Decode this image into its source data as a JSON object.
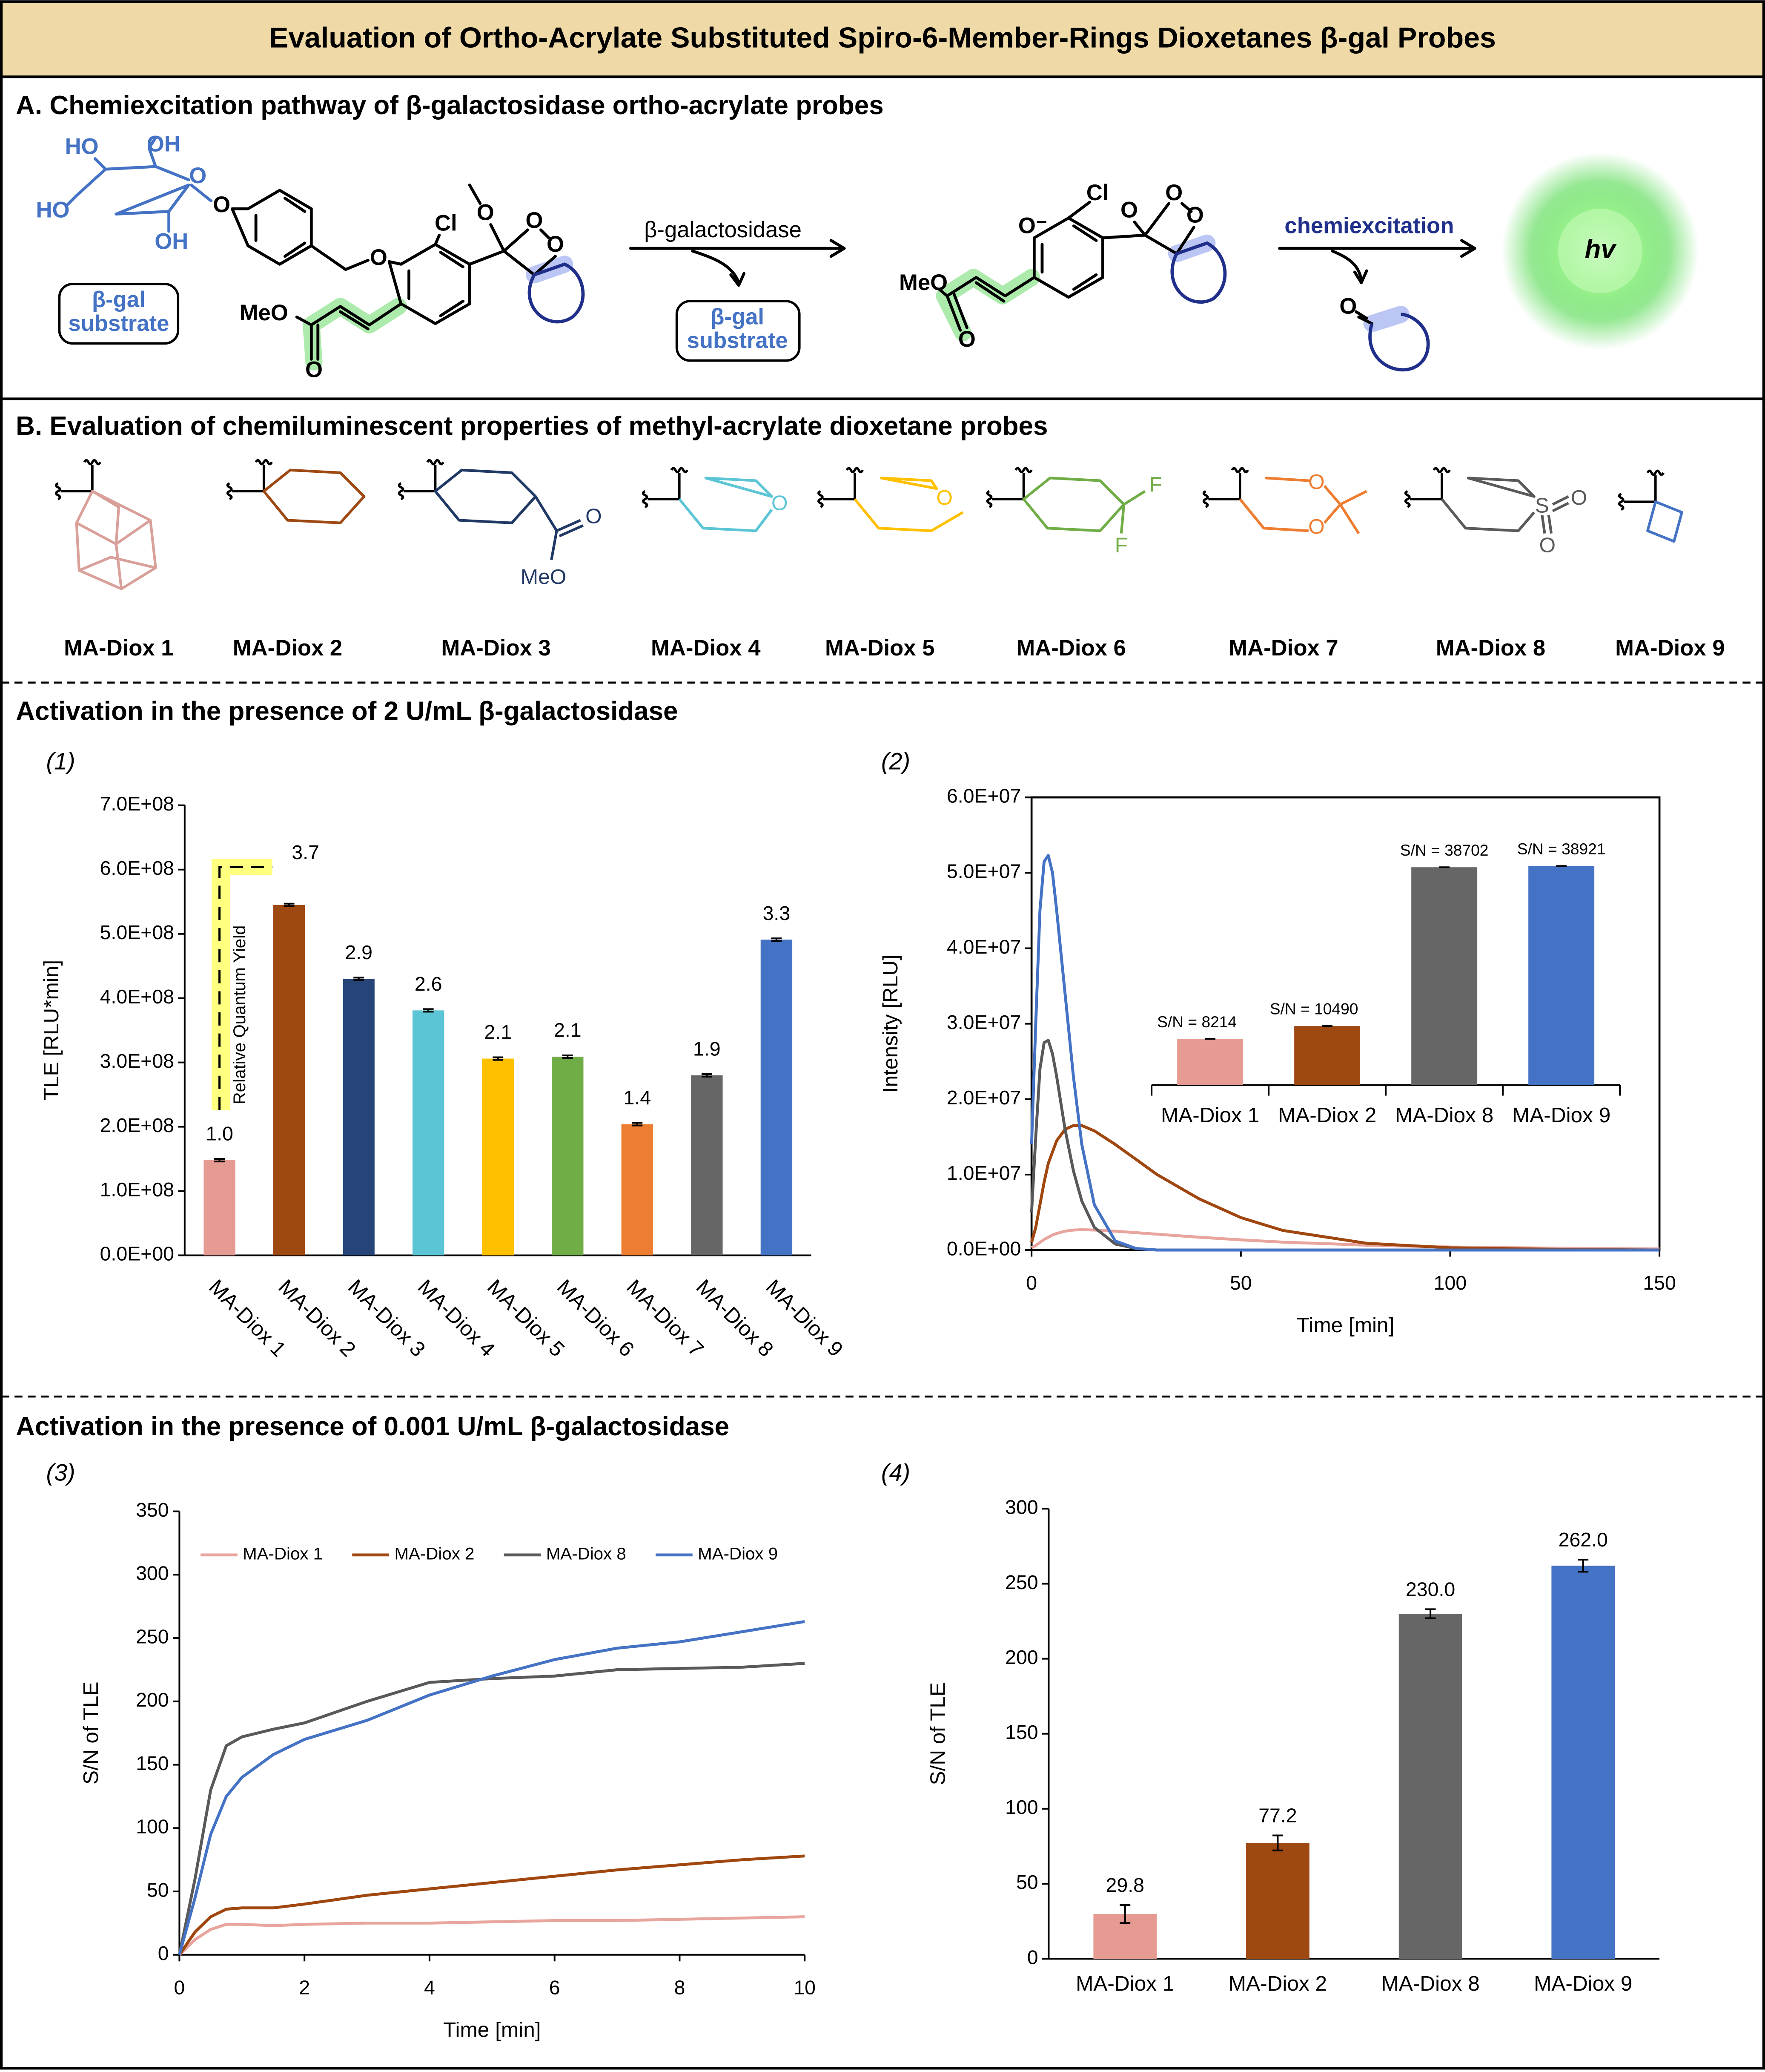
{
  "title": "Evaluation of Ortho-Acrylate Substituted Spiro-6-Member-Rings Dioxetanes β-gal Probes",
  "panel_a": {
    "title": "A. Chemiexcitation pathway of β-galactosidase ortho-acrylate probes",
    "atoms": [
      "HO",
      "OH",
      "O",
      "HO",
      "OH",
      "O",
      "O",
      "Cl",
      "O",
      "O",
      "O",
      "MeO",
      "O",
      "O⁻",
      "Cl",
      "O",
      "O",
      "O",
      "MeO",
      "O",
      "O"
    ],
    "substrate": [
      "β-gal",
      "substrate"
    ],
    "enzyme": "β-galactosidase",
    "step": "chemiexcitation",
    "emission": "hv"
  },
  "panel_b": {
    "title": "B. Evaluation of chemiluminescent properties of methyl-acrylate dioxetane probes",
    "probes": [
      {
        "name": "MA-Diox 1"
      },
      {
        "name": "MA-Diox 2"
      },
      {
        "name": "MA-Diox 3",
        "atoms": [
          "O",
          "MeO"
        ]
      },
      {
        "name": "MA-Diox 4",
        "atoms": [
          "O"
        ]
      },
      {
        "name": "MA-Diox 5",
        "atoms": [
          "O"
        ]
      },
      {
        "name": "MA-Diox 6",
        "atoms": [
          "F",
          "F"
        ]
      },
      {
        "name": "MA-Diox 7",
        "atoms": [
          "O",
          "O"
        ]
      },
      {
        "name": "MA-Diox 8",
        "atoms": [
          "S",
          "O",
          "O"
        ]
      },
      {
        "name": "MA-Diox 9"
      }
    ]
  },
  "heading_high": "Activation in the presence of 2 U/mL β-galactosidase",
  "heading_low": "Activation in the presence of 0.001 U/mL β-galactosidase",
  "chart_data": [
    {
      "type": "bar",
      "panel_label": "(1)",
      "y_label": "TLE [RLU*min]",
      "categories": [
        "MA-Diox 1",
        "MA-Diox 2",
        "MA-Diox 3",
        "MA-Diox 4",
        "MA-Diox 5",
        "MA-Diox 6",
        "MA-Diox 7",
        "MA-Diox 8",
        "MA-Diox 9"
      ],
      "values": [
        148000000,
        545000000,
        430000000,
        381000000,
        306000000,
        309000000,
        204000000,
        280000000,
        491000000
      ],
      "errors": [
        2000000,
        2000000,
        2000000,
        2000000,
        2000000,
        2000000,
        2000000,
        2000000,
        2000000
      ],
      "colors": [
        "#e59a92",
        "#9e4812",
        "#264478",
        "#5bc5d5",
        "#ffc000",
        "#70ad47",
        "#ed7d31",
        "#666666",
        "#4472c4"
      ],
      "annotations": [
        "1.0",
        "3.7",
        "2.9",
        "2.6",
        "2.1",
        "2.1",
        "1.4",
        "1.9",
        "3.3"
      ],
      "annotation_title": "Relative Quantum Yield",
      "ylim": [
        0,
        700000000
      ],
      "yticks": [
        {
          "value": 0,
          "label": "0.0E+00"
        },
        {
          "value": 100000000,
          "label": "1.0E+08"
        },
        {
          "value": 200000000,
          "label": "2.0E+08"
        },
        {
          "value": 300000000,
          "label": "3.0E+08"
        },
        {
          "value": 400000000,
          "label": "4.0E+08"
        },
        {
          "value": 500000000,
          "label": "5.0E+08"
        },
        {
          "value": 600000000,
          "label": "6.0E+08"
        },
        {
          "value": 700000000,
          "label": "7.0E+08"
        }
      ]
    },
    {
      "type": "line",
      "panel_label": "(2)",
      "x_label": "Time [min]",
      "y_label": "Intensity [RLU]",
      "x": [
        0,
        1,
        2,
        3,
        4,
        5,
        6,
        8,
        10,
        12,
        15,
        20,
        25,
        30,
        40,
        50,
        60,
        80,
        100,
        125,
        150
      ],
      "xlim": [
        0,
        150
      ],
      "xticks": [
        0,
        50,
        100,
        150
      ],
      "ylim": [
        0,
        60000000
      ],
      "yticks": [
        {
          "value": 0,
          "label": "0.0E+00"
        },
        {
          "value": 10000000,
          "label": "1.0E+07"
        },
        {
          "value": 20000000,
          "label": "2.0E+07"
        },
        {
          "value": 30000000,
          "label": "3.0E+07"
        },
        {
          "value": 40000000,
          "label": "4.0E+07"
        },
        {
          "value": 50000000,
          "label": "5.0E+07"
        },
        {
          "value": 60000000,
          "label": "6.0E+07"
        }
      ],
      "series": [
        {
          "name": "MA-Diox 1",
          "color": "#e8a59e",
          "values": [
            300000,
            600000,
            1000000,
            1400000,
            1700000,
            2000000,
            2200000,
            2500000,
            2650000,
            2700000,
            2650000,
            2500000,
            2300000,
            2100000,
            1700000,
            1350000,
            1050000,
            650000,
            400000,
            250000,
            150000
          ]
        },
        {
          "name": "MA-Diox 2",
          "color": "#a0460f",
          "values": [
            1000000,
            3000000,
            6000000,
            9000000,
            11500000,
            13000000,
            14500000,
            16000000,
            16500000,
            16500000,
            15800000,
            14000000,
            12000000,
            10000000,
            6800000,
            4300000,
            2600000,
            900000,
            300000,
            100000,
            0
          ]
        },
        {
          "name": "MA-Diox 8",
          "color": "#595959",
          "values": [
            5000000,
            15000000,
            24000000,
            27500000,
            27800000,
            26000000,
            23000000,
            16000000,
            10500000,
            6500000,
            3000000,
            800000,
            200000,
            0,
            0,
            0,
            0,
            0,
            0,
            0,
            0
          ]
        },
        {
          "name": "MA-Diox 9",
          "color": "#4472c4",
          "values": [
            14000000,
            30000000,
            45000000,
            51500000,
            52300000,
            50000000,
            45000000,
            34000000,
            23000000,
            14000000,
            6000000,
            1200000,
            200000,
            0,
            0,
            0,
            0,
            0,
            0,
            0,
            0
          ]
        }
      ],
      "inset": {
        "type": "bar",
        "categories": [
          "MA-Diox 1",
          "MA-Diox 2",
          "MA-Diox 8",
          "MA-Diox 9"
        ],
        "values": [
          8214,
          10490,
          38702,
          38921
        ],
        "value_labels": [
          "S/N = 8214",
          "S/N = 10490",
          "S/N = 38702",
          "S/N = 38921"
        ],
        "colors": [
          "#e59a92",
          "#9e4812",
          "#666666",
          "#4472c4"
        ]
      }
    },
    {
      "type": "line",
      "panel_label": "(3)",
      "x_label": "Time [min]",
      "y_label": "S/N of TLE",
      "legend": "top",
      "x": [
        0,
        0.25,
        0.5,
        0.75,
        1,
        1.5,
        2,
        3,
        4,
        5,
        6,
        7,
        8,
        9,
        10
      ],
      "xlim": [
        0,
        10
      ],
      "xticks": [
        0,
        2,
        4,
        6,
        8,
        10
      ],
      "ylim": [
        0,
        350
      ],
      "yticks": [
        0,
        50,
        100,
        150,
        200,
        250,
        300,
        350
      ],
      "series": [
        {
          "name": "MA-Diox 1",
          "color": "#e8a59e",
          "values": [
            0,
            12,
            20,
            24,
            24,
            23,
            24,
            25,
            25,
            26,
            27,
            27,
            28,
            29,
            30
          ]
        },
        {
          "name": "MA-Diox 2",
          "color": "#a0460f",
          "values": [
            0,
            18,
            30,
            36,
            37,
            37,
            40,
            47,
            52,
            57,
            62,
            67,
            71,
            75,
            78
          ]
        },
        {
          "name": "MA-Diox 8",
          "color": "#595959",
          "values": [
            0,
            60,
            130,
            165,
            172,
            178,
            183,
            200,
            215,
            218,
            220,
            225,
            226,
            227,
            230
          ]
        },
        {
          "name": "MA-Diox 9",
          "color": "#4472c4",
          "values": [
            0,
            45,
            95,
            125,
            140,
            158,
            170,
            185,
            205,
            220,
            233,
            242,
            247,
            255,
            263
          ]
        }
      ]
    },
    {
      "type": "bar",
      "panel_label": "(4)",
      "y_label": "S/N of TLE",
      "categories": [
        "MA-Diox 1",
        "MA-Diox 2",
        "MA-Diox 8",
        "MA-Diox 9"
      ],
      "values": [
        29.8,
        77.2,
        230.0,
        262.0
      ],
      "value_labels": [
        "29.8",
        "77.2",
        "230.0",
        "262.0"
      ],
      "errors": [
        6,
        5,
        3,
        4
      ],
      "colors": [
        "#e59a92",
        "#9e4812",
        "#666666",
        "#4472c4"
      ],
      "ylim": [
        0,
        300
      ],
      "yticks": [
        0,
        50,
        100,
        150,
        200,
        250,
        300
      ]
    }
  ]
}
